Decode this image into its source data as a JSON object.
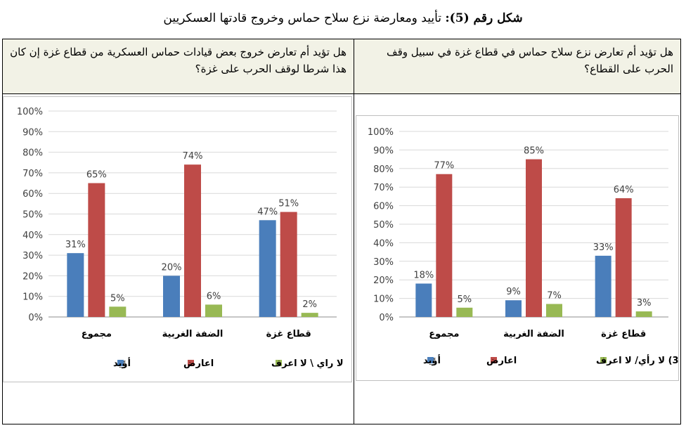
{
  "figure": {
    "title_lead": "شكل رقم (5):",
    "title_text": " تأييد ومعارضة نزع سلاح حماس وخروج قادتها العسكريين"
  },
  "colors": {
    "support": "#4a7ebb",
    "oppose": "#be4b48",
    "neutral": "#98b954"
  },
  "chart_data": [
    {
      "type": "bar",
      "question": "هل تؤيد أم تعارض خروج بعض قيادات حماس العسكرية من قطاع غزة إن كان هذا شرطا لوقف الحرب على غزة؟",
      "categories": [
        "مجموع",
        "الضفة الغربية",
        "قطاع غزة"
      ],
      "series": [
        {
          "name": "أؤيد",
          "values": [
            31,
            20,
            47
          ],
          "labels": [
            "31%",
            "20%",
            "47%"
          ]
        },
        {
          "name": "اعارض",
          "values": [
            65,
            74,
            51
          ],
          "labels": [
            "65%",
            "74%",
            "51%"
          ]
        },
        {
          "name": "لا راي \\ لا اعرف",
          "values": [
            5,
            6,
            2
          ],
          "labels": [
            "5%",
            "6%",
            "2%"
          ]
        }
      ],
      "y_ticks": [
        "0%",
        "10%",
        "20%",
        "30%",
        "40%",
        "50%",
        "60%",
        "70%",
        "80%",
        "90%",
        "100%"
      ],
      "ylim": [
        0,
        100
      ],
      "legend_position": "bottom"
    },
    {
      "type": "bar",
      "question": "هل تؤيد أم تعارض نزع سلاح حماس في قطاع غزة في سبيل وقف الحرب على القطاع؟",
      "categories": [
        "مجموع",
        "الضفة الغربية",
        "قطاع غزة"
      ],
      "series": [
        {
          "name": "أؤيد",
          "values": [
            18,
            9,
            33
          ],
          "labels": [
            "18%",
            "9%",
            "33%"
          ]
        },
        {
          "name": "اعارض",
          "values": [
            77,
            85,
            64
          ],
          "labels": [
            "77%",
            "85%",
            "64%"
          ]
        },
        {
          "name": "3) لا رأي/ لا اعرف",
          "values": [
            5,
            7,
            3
          ],
          "labels": [
            "5%",
            "7%",
            "3%"
          ]
        }
      ],
      "y_ticks": [
        "0%",
        "10%",
        "20%",
        "30%",
        "40%",
        "50%",
        "60%",
        "70%",
        "80%",
        "90%",
        "100%"
      ],
      "ylim": [
        0,
        100
      ],
      "legend_position": "bottom"
    }
  ]
}
